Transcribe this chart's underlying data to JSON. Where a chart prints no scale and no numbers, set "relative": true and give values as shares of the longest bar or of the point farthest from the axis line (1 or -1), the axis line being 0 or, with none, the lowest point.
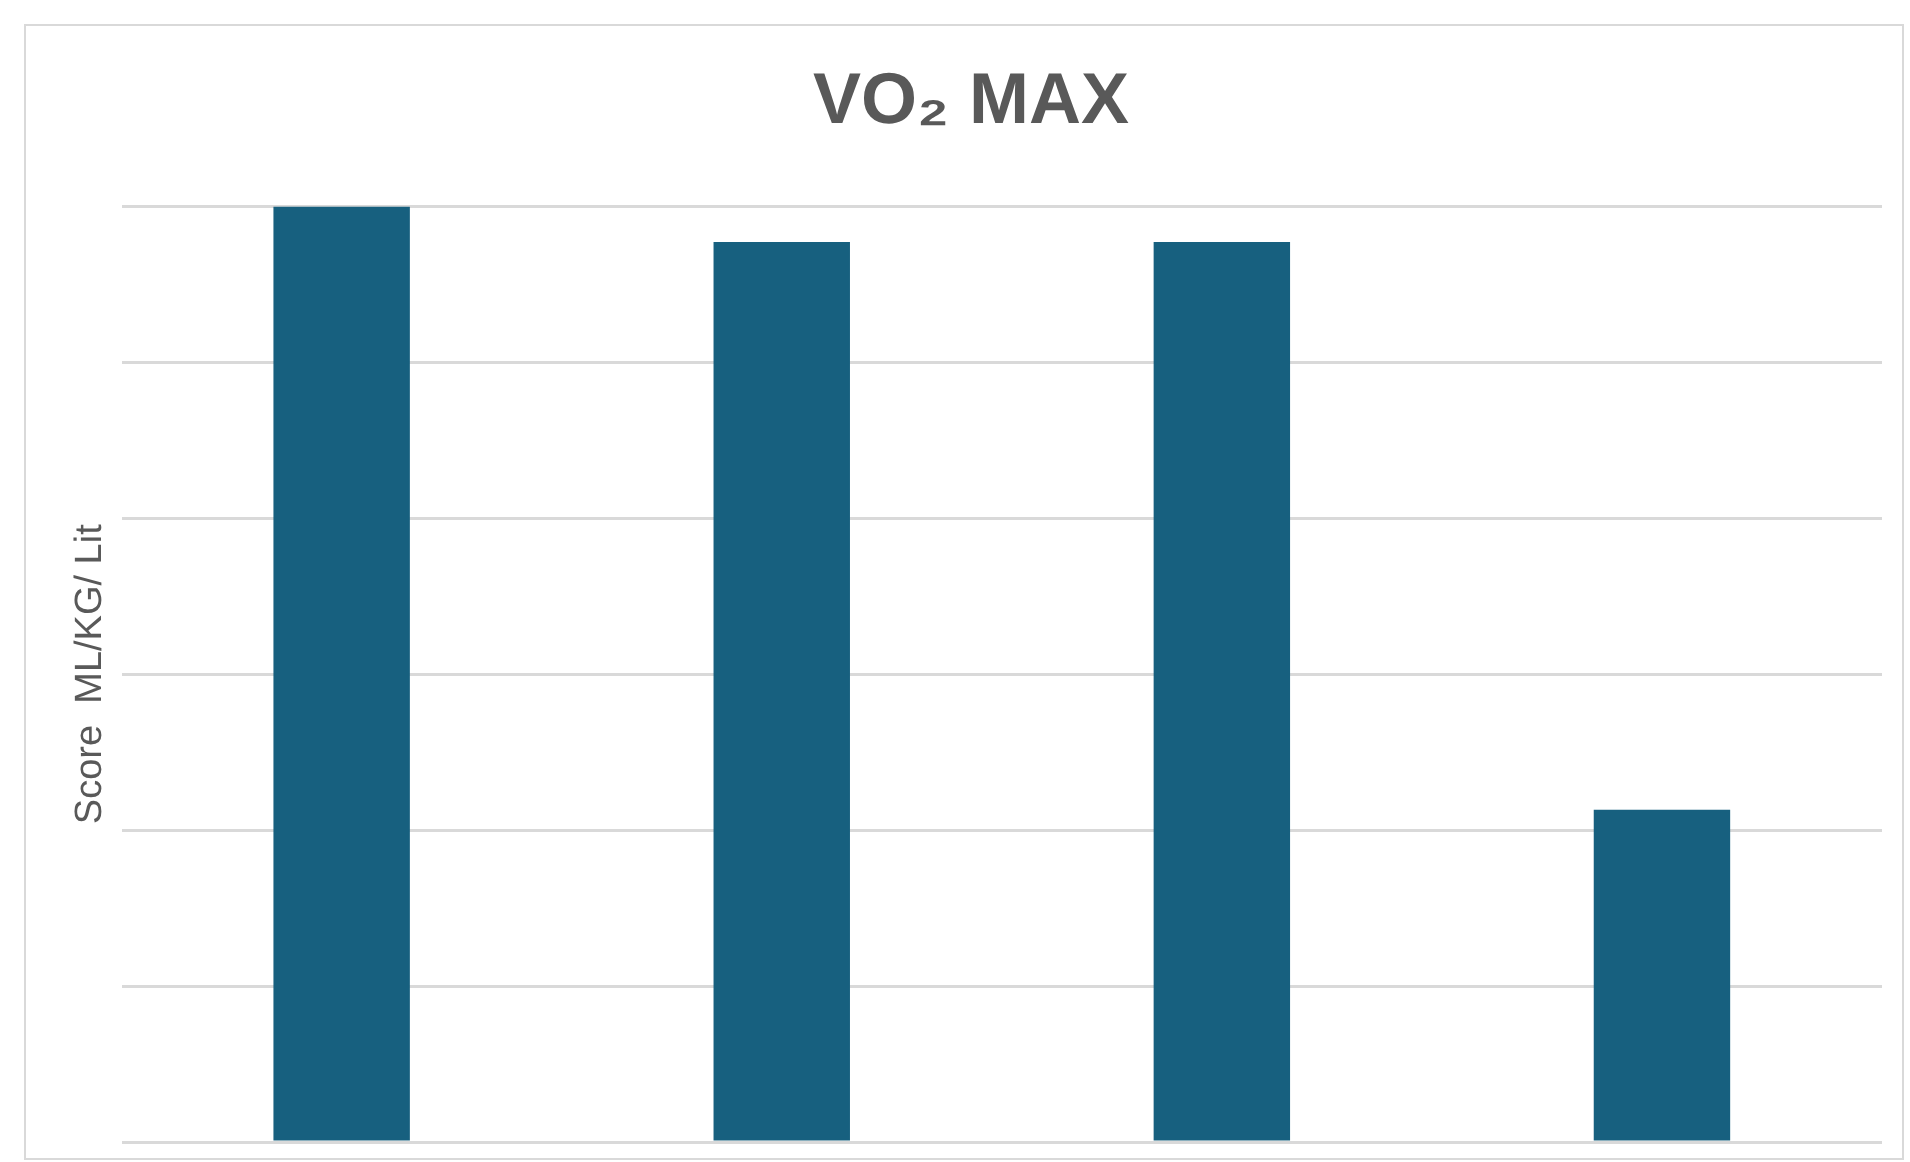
{
  "chart_data": {
    "type": "bar",
    "title": "VO₂ MAX",
    "ylabel": "Score  ML/KG/ Lit",
    "categories": [
      null,
      null,
      null,
      null
    ],
    "values": [
      1,
      0.962,
      0.962,
      0.355
    ],
    "color": "#17607f",
    "relative": true,
    "grid": "y"
  }
}
